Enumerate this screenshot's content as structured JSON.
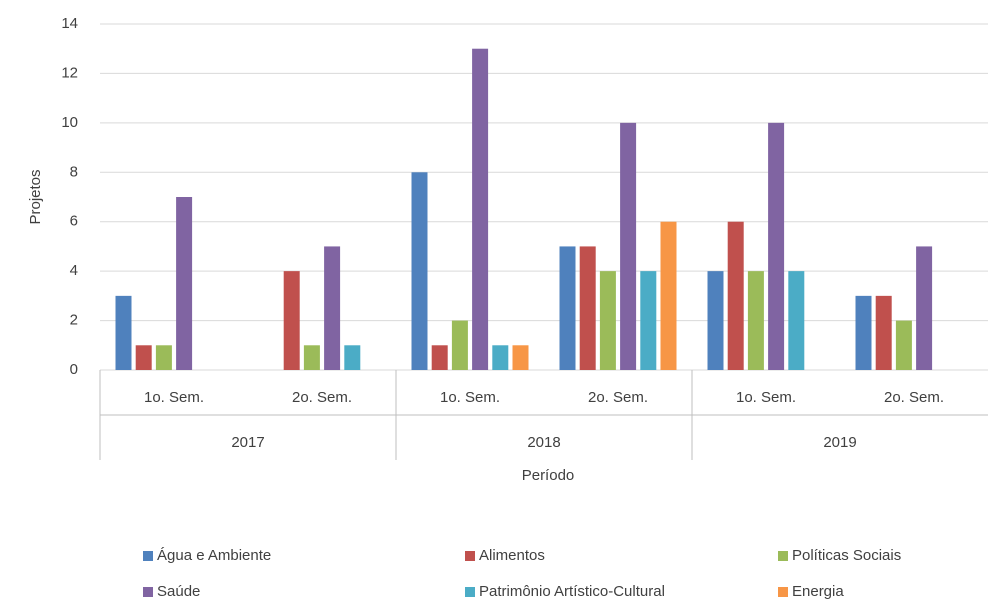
{
  "chart_data": {
    "type": "bar",
    "categories": [
      "1o. Sem.",
      "2o. Sem.",
      "1o. Sem.",
      "2o. Sem.",
      "1o. Sem.",
      "2o. Sem."
    ],
    "groups": [
      "2017",
      "2018",
      "2019"
    ],
    "x_label": "Período",
    "y_label": "Projetos",
    "ylim": [
      0,
      14
    ],
    "yticks": [
      0,
      2,
      4,
      6,
      8,
      10,
      12,
      14
    ],
    "grid": true,
    "legend": "bottom",
    "series": [
      {
        "name": "Água e Ambiente",
        "color": "#4f81bd",
        "values": [
          3,
          null,
          8,
          5,
          4,
          3
        ]
      },
      {
        "name": "Alimentos",
        "color": "#c0504d",
        "values": [
          1,
          4,
          1,
          5,
          6,
          3
        ]
      },
      {
        "name": "Políticas Sociais",
        "color": "#9bbb59",
        "values": [
          1,
          1,
          2,
          4,
          4,
          2
        ]
      },
      {
        "name": "Saúde",
        "color": "#8064a2",
        "values": [
          7,
          5,
          13,
          10,
          10,
          5
        ]
      },
      {
        "name": "Patrimônio Artístico-Cultural",
        "color": "#4bacc6",
        "values": [
          null,
          1,
          1,
          4,
          4,
          null
        ]
      },
      {
        "name": "Energia",
        "color": "#f79646",
        "values": [
          null,
          null,
          1,
          6,
          null,
          null
        ]
      }
    ]
  }
}
